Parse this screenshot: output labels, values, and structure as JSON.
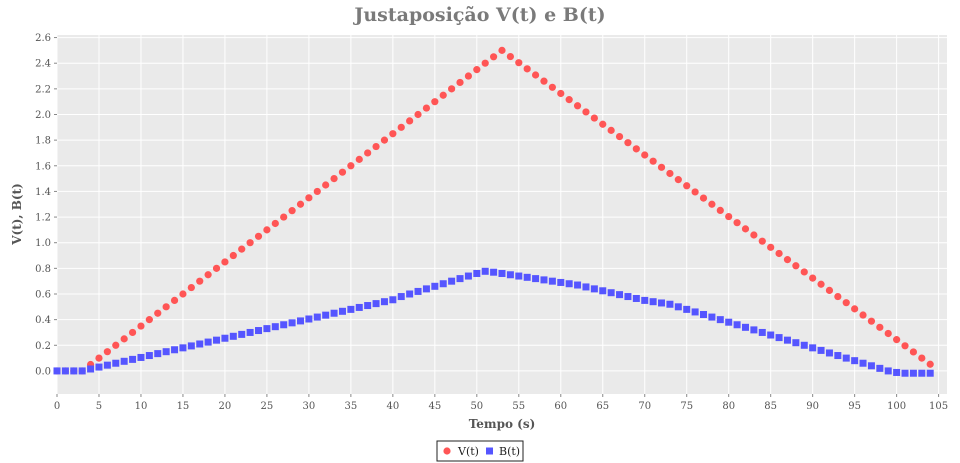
{
  "chart_data": {
    "type": "scatter",
    "title": "Justaposição V(t) e B(t)",
    "xlabel": "Tempo (s)",
    "ylabel": "V(t), B(t)",
    "xlim": [
      0,
      106
    ],
    "ylim": [
      -0.18,
      2.62
    ],
    "x_ticks": [
      0,
      5,
      10,
      15,
      20,
      25,
      30,
      35,
      40,
      45,
      50,
      55,
      60,
      65,
      70,
      75,
      80,
      85,
      90,
      95,
      100,
      105
    ],
    "y_ticks": [
      "0.0",
      "0.2",
      "0.4",
      "0.6",
      "0.8",
      "1.0",
      "1.2",
      "1.4",
      "1.6",
      "1.8",
      "2.0",
      "2.2",
      "2.4",
      "2.6"
    ],
    "grid": true,
    "legend_position": "bottom-center",
    "series": [
      {
        "name": "V(t)",
        "marker": "circle",
        "color": "#ff5555",
        "x": [
          0,
          1,
          2,
          3,
          4,
          5,
          6,
          7,
          8,
          9,
          10,
          11,
          12,
          13,
          14,
          15,
          16,
          17,
          18,
          19,
          20,
          21,
          22,
          23,
          24,
          25,
          26,
          27,
          28,
          29,
          30,
          31,
          32,
          33,
          34,
          35,
          36,
          37,
          38,
          39,
          40,
          41,
          42,
          43,
          44,
          45,
          46,
          47,
          48,
          49,
          50,
          51,
          52,
          53,
          54,
          55,
          56,
          57,
          58,
          59,
          60,
          61,
          62,
          63,
          64,
          65,
          66,
          67,
          68,
          69,
          70,
          71,
          72,
          73,
          74,
          75,
          76,
          77,
          78,
          79,
          80,
          81,
          82,
          83,
          84,
          85,
          86,
          87,
          88,
          89,
          90,
          91,
          92,
          93,
          94,
          95,
          96,
          97,
          98,
          99,
          100,
          101,
          102,
          103,
          104
        ],
        "values": [
          0,
          0,
          0,
          0,
          0.05,
          0.1,
          0.15,
          0.2,
          0.25,
          0.3,
          0.35,
          0.4,
          0.45,
          0.5,
          0.55,
          0.6,
          0.65,
          0.7,
          0.75,
          0.8,
          0.85,
          0.9,
          0.95,
          1.0,
          1.05,
          1.1,
          1.15,
          1.2,
          1.25,
          1.3,
          1.35,
          1.4,
          1.45,
          1.5,
          1.55,
          1.6,
          1.65,
          1.7,
          1.75,
          1.8,
          1.85,
          1.9,
          1.95,
          2.0,
          2.05,
          2.1,
          2.15,
          2.2,
          2.25,
          2.3,
          2.35,
          2.4,
          2.45,
          2.5,
          2.452,
          2.404,
          2.356,
          2.308,
          2.26,
          2.212,
          2.164,
          2.116,
          2.068,
          2.02,
          1.972,
          1.924,
          1.876,
          1.828,
          1.78,
          1.732,
          1.684,
          1.636,
          1.588,
          1.54,
          1.492,
          1.444,
          1.396,
          1.348,
          1.3,
          1.252,
          1.204,
          1.156,
          1.108,
          1.06,
          1.012,
          0.964,
          0.916,
          0.868,
          0.82,
          0.772,
          0.724,
          0.676,
          0.628,
          0.58,
          0.532,
          0.484,
          0.436,
          0.388,
          0.34,
          0.292,
          0.244,
          0.196,
          0.148,
          0.1,
          0.052
        ]
      },
      {
        "name": "B(t)",
        "marker": "square",
        "color": "#5555ff",
        "x": [
          0,
          1,
          2,
          3,
          4,
          5,
          6,
          7,
          8,
          9,
          10,
          11,
          12,
          13,
          14,
          15,
          16,
          17,
          18,
          19,
          20,
          21,
          22,
          23,
          24,
          25,
          26,
          27,
          28,
          29,
          30,
          31,
          32,
          33,
          34,
          35,
          36,
          37,
          38,
          39,
          40,
          41,
          42,
          43,
          44,
          45,
          46,
          47,
          48,
          49,
          50,
          51,
          52,
          53,
          54,
          55,
          56,
          57,
          58,
          59,
          60,
          61,
          62,
          63,
          64,
          65,
          66,
          67,
          68,
          69,
          70,
          71,
          72,
          73,
          74,
          75,
          76,
          77,
          78,
          79,
          80,
          81,
          82,
          83,
          84,
          85,
          86,
          87,
          88,
          89,
          90,
          91,
          92,
          93,
          94,
          95,
          96,
          97,
          98,
          99,
          100,
          101,
          102,
          103,
          104
        ],
        "values": [
          0,
          0,
          0,
          0,
          0.015,
          0.03,
          0.045,
          0.06,
          0.075,
          0.09,
          0.105,
          0.12,
          0.135,
          0.15,
          0.165,
          0.18,
          0.195,
          0.21,
          0.225,
          0.24,
          0.255,
          0.27,
          0.285,
          0.3,
          0.315,
          0.33,
          0.345,
          0.36,
          0.375,
          0.39,
          0.405,
          0.42,
          0.435,
          0.45,
          0.465,
          0.48,
          0.495,
          0.51,
          0.525,
          0.54,
          0.555,
          0.58,
          0.6,
          0.62,
          0.64,
          0.66,
          0.68,
          0.7,
          0.72,
          0.74,
          0.76,
          0.777,
          0.77,
          0.76,
          0.75,
          0.74,
          0.73,
          0.72,
          0.71,
          0.7,
          0.69,
          0.68,
          0.67,
          0.655,
          0.64,
          0.625,
          0.61,
          0.595,
          0.58,
          0.565,
          0.55,
          0.54,
          0.53,
          0.52,
          0.5,
          0.48,
          0.46,
          0.44,
          0.42,
          0.4,
          0.38,
          0.36,
          0.34,
          0.32,
          0.3,
          0.28,
          0.26,
          0.24,
          0.22,
          0.2,
          0.18,
          0.16,
          0.14,
          0.12,
          0.1,
          0.08,
          0.06,
          0.04,
          0.02,
          0.0,
          -0.012,
          -0.018,
          -0.018,
          -0.018,
          -0.018
        ]
      }
    ]
  }
}
